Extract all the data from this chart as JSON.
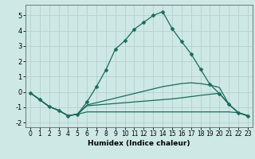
{
  "xlabel": "Humidex (Indice chaleur)",
  "bg_color": "#cde8e5",
  "grid_color": "#b8d4d2",
  "line_color": "#1a6b5a",
  "xlim_min": -0.5,
  "xlim_max": 23.5,
  "ylim_min": -2.3,
  "ylim_max": 5.7,
  "xticks": [
    0,
    1,
    2,
    3,
    4,
    5,
    6,
    7,
    8,
    9,
    10,
    11,
    12,
    13,
    14,
    15,
    16,
    17,
    18,
    19,
    20,
    21,
    22,
    23
  ],
  "yticks": [
    -2,
    -1,
    0,
    1,
    2,
    3,
    4,
    5
  ],
  "curve1_x": [
    0,
    1,
    2,
    3,
    4,
    5,
    6,
    7,
    8,
    9,
    10,
    11,
    12,
    13,
    14,
    15,
    16,
    17,
    18,
    19,
    20,
    21,
    22,
    23
  ],
  "curve1_y": [
    -0.05,
    -0.5,
    -0.95,
    -1.2,
    -1.55,
    -1.45,
    -0.65,
    0.35,
    1.45,
    2.8,
    3.35,
    4.1,
    4.55,
    5.0,
    5.25,
    4.15,
    3.3,
    2.5,
    1.5,
    0.5,
    -0.1,
    -0.8,
    -1.35,
    -1.55
  ],
  "curve2_x": [
    0,
    1,
    2,
    3,
    4,
    5,
    6,
    7,
    8,
    9,
    10,
    11,
    12,
    13,
    14,
    15,
    16,
    17,
    18,
    19,
    20,
    21,
    22,
    23
  ],
  "curve2_y": [
    -0.05,
    -0.5,
    -0.95,
    -1.2,
    -1.55,
    -1.45,
    -0.85,
    -0.7,
    -0.55,
    -0.4,
    -0.25,
    -0.1,
    0.05,
    0.2,
    0.35,
    0.45,
    0.55,
    0.6,
    0.55,
    0.45,
    0.3,
    -0.8,
    -1.35,
    -1.55
  ],
  "curve3_x": [
    0,
    1,
    2,
    3,
    4,
    5,
    6,
    7,
    8,
    9,
    10,
    11,
    12,
    13,
    14,
    15,
    16,
    17,
    18,
    19,
    20,
    21,
    22,
    23
  ],
  "curve3_y": [
    -0.05,
    -0.5,
    -0.95,
    -1.2,
    -1.55,
    -1.45,
    -0.9,
    -0.85,
    -0.8,
    -0.75,
    -0.7,
    -0.65,
    -0.6,
    -0.55,
    -0.5,
    -0.45,
    -0.38,
    -0.3,
    -0.22,
    -0.15,
    -0.08,
    -0.8,
    -1.35,
    -1.55
  ],
  "curve4_x": [
    0,
    1,
    2,
    3,
    4,
    5,
    6,
    7,
    8,
    9,
    10,
    11,
    12,
    13,
    14,
    15,
    16,
    17,
    18,
    19,
    20,
    21,
    22,
    23
  ],
  "curve4_y": [
    -0.05,
    -0.5,
    -0.95,
    -1.2,
    -1.55,
    -1.45,
    -1.3,
    -1.3,
    -1.3,
    -1.3,
    -1.3,
    -1.3,
    -1.3,
    -1.3,
    -1.3,
    -1.3,
    -1.3,
    -1.3,
    -1.3,
    -1.3,
    -1.3,
    -1.3,
    -1.35,
    -1.55
  ],
  "tick_fontsize": 5.5,
  "xlabel_fontsize": 6.5
}
